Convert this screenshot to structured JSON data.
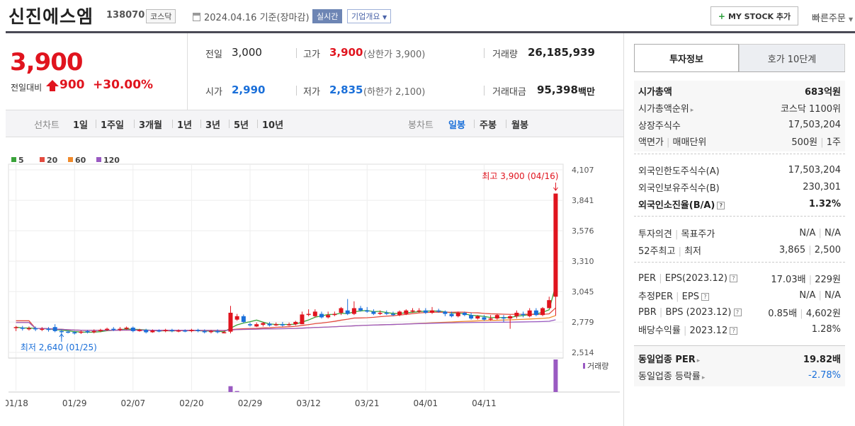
{
  "header": {
    "name": "신진에스엠",
    "code": "138070",
    "market": "코스닥",
    "date": "2024.04.16",
    "date_suffix": "기준(장마감)",
    "realtime": "실시간",
    "overview": "기업개요",
    "mystock": "MY STOCK 추가",
    "quick_order": "빠른주문"
  },
  "price": {
    "current": "3,900",
    "change_label": "전일대비",
    "change": "900",
    "change_pct": "+30.00%"
  },
  "quote": {
    "prev_label": "전일",
    "prev": "3,000",
    "high_label": "고가",
    "high": "3,900",
    "upper_limit": "(상한가 3,900)",
    "volume_label": "거래량",
    "volume": "26,185,939",
    "open_label": "시가",
    "open": "2,990",
    "low_label": "저가",
    "low": "2,835",
    "lower_limit": "(하한가 2,100)",
    "amount_label": "거래대금",
    "amount": "95,398",
    "amount_unit": "백만"
  },
  "period": {
    "line_label": "선차트",
    "line_items": [
      "1일",
      "1주일",
      "3개월",
      "1년",
      "3년",
      "5년",
      "10년"
    ],
    "candle_label": "봉차트",
    "candle_items": [
      "일봉",
      "주봉",
      "월봉"
    ],
    "candle_active": "일봉"
  },
  "chart_data": {
    "type": "candlestick",
    "ma_legend": [
      {
        "name": "5",
        "color": "#3aa33a"
      },
      {
        "name": "20",
        "color": "#e34b3f"
      },
      {
        "name": "60",
        "color": "#f08a2a"
      },
      {
        "name": "120",
        "color": "#9a5ac2"
      }
    ],
    "y_ticks": [
      "4,107",
      "3,841",
      "3,576",
      "3,310",
      "3,045",
      "2,779",
      "2,514"
    ],
    "ylim": [
      2514,
      4107
    ],
    "x_labels": [
      "01/18",
      "01/29",
      "02/07",
      "02/20",
      "02/29",
      "03/12",
      "03/21",
      "04/01",
      "04/11"
    ],
    "high_annotation": "최고 3,900 (04/16)",
    "low_annotation": "최저 2,640 (01/25)",
    "volume_label": "거래량",
    "candles": [
      [
        2735,
        2735,
        2700,
        2745
      ],
      [
        2730,
        2720,
        2705,
        2745
      ],
      [
        2720,
        2725,
        2705,
        2740
      ],
      [
        2725,
        2715,
        2700,
        2740
      ],
      [
        2715,
        2720,
        2700,
        2735
      ],
      [
        2720,
        2710,
        2695,
        2735
      ],
      [
        2735,
        2700,
        2690,
        2760
      ],
      [
        2700,
        2695,
        2640,
        2715
      ],
      [
        2695,
        2690,
        2680,
        2705
      ],
      [
        2690,
        2680,
        2670,
        2700
      ],
      [
        2685,
        2695,
        2675,
        2705
      ],
      [
        2700,
        2690,
        2680,
        2710
      ],
      [
        2690,
        2700,
        2680,
        2715
      ],
      [
        2700,
        2710,
        2690,
        2720
      ],
      [
        2710,
        2720,
        2700,
        2730
      ],
      [
        2720,
        2710,
        2700,
        2735
      ],
      [
        2710,
        2720,
        2700,
        2735
      ],
      [
        2720,
        2730,
        2710,
        2740
      ],
      [
        2730,
        2700,
        2690,
        2740
      ],
      [
        2700,
        2710,
        2695,
        2720
      ],
      [
        2710,
        2690,
        2680,
        2720
      ],
      [
        2690,
        2705,
        2685,
        2715
      ],
      [
        2705,
        2700,
        2690,
        2715
      ],
      [
        2700,
        2710,
        2690,
        2720
      ],
      [
        2710,
        2700,
        2690,
        2720
      ],
      [
        2700,
        2705,
        2690,
        2715
      ],
      [
        2705,
        2700,
        2690,
        2715
      ],
      [
        2700,
        2710,
        2690,
        2720
      ],
      [
        2710,
        2700,
        2690,
        2720
      ],
      [
        2700,
        2690,
        2680,
        2715
      ],
      [
        2695,
        2700,
        2680,
        2710
      ],
      [
        2700,
        2690,
        2680,
        2715
      ],
      [
        2690,
        2690,
        2680,
        2705
      ],
      [
        2695,
        2860,
        2680,
        2920
      ],
      [
        2800,
        2830,
        2790,
        2850
      ],
      [
        2830,
        2780,
        2770,
        2845
      ],
      [
        2760,
        2750,
        2740,
        2775
      ],
      [
        2740,
        2760,
        2735,
        2775
      ],
      [
        2755,
        2770,
        2740,
        2780
      ],
      [
        2765,
        2750,
        2740,
        2780
      ],
      [
        2750,
        2760,
        2745,
        2775
      ],
      [
        2760,
        2750,
        2740,
        2780
      ],
      [
        2755,
        2760,
        2745,
        2775
      ],
      [
        2760,
        2780,
        2750,
        2790
      ],
      [
        2760,
        2845,
        2760,
        2870
      ],
      [
        2845,
        2850,
        2830,
        2890
      ],
      [
        2830,
        2870,
        2820,
        2890
      ],
      [
        2850,
        2820,
        2810,
        2870
      ],
      [
        2820,
        2840,
        2810,
        2870
      ],
      [
        2840,
        2850,
        2830,
        2870
      ],
      [
        2860,
        2900,
        2840,
        2910
      ],
      [
        2880,
        2850,
        2840,
        2980
      ],
      [
        2850,
        2900,
        2840,
        2960
      ],
      [
        2900,
        2880,
        2870,
        2920
      ],
      [
        2880,
        2870,
        2860,
        2910
      ],
      [
        2870,
        2850,
        2840,
        2890
      ],
      [
        2850,
        2860,
        2840,
        2880
      ],
      [
        2860,
        2850,
        2840,
        2880
      ],
      [
        2850,
        2840,
        2830,
        2870
      ],
      [
        2840,
        2870,
        2830,
        2880
      ],
      [
        2850,
        2880,
        2840,
        2890
      ],
      [
        2870,
        2880,
        2860,
        2900
      ],
      [
        2880,
        2880,
        2860,
        2900
      ],
      [
        2880,
        2860,
        2850,
        2900
      ],
      [
        2860,
        2880,
        2850,
        2910
      ],
      [
        2880,
        2870,
        2860,
        2895
      ],
      [
        2870,
        2850,
        2830,
        2880
      ],
      [
        2850,
        2830,
        2820,
        2870
      ],
      [
        2830,
        2860,
        2820,
        2870
      ],
      [
        2860,
        2840,
        2830,
        2870
      ],
      [
        2840,
        2810,
        2800,
        2860
      ],
      [
        2810,
        2830,
        2800,
        2840
      ],
      [
        2820,
        2800,
        2790,
        2840
      ],
      [
        2800,
        2810,
        2790,
        2840
      ],
      [
        2810,
        2840,
        2800,
        2850
      ],
      [
        2820,
        2810,
        2780,
        2840
      ],
      [
        2810,
        2830,
        2720,
        2840
      ],
      [
        2830,
        2860,
        2810,
        2880
      ],
      [
        2850,
        2840,
        2820,
        2870
      ],
      [
        2830,
        2880,
        2820,
        2900
      ],
      [
        2880,
        2840,
        2830,
        2900
      ],
      [
        2840,
        2900,
        2830,
        2910
      ],
      [
        2900,
        2970,
        2900,
        3000
      ],
      [
        3000,
        3900,
        2835,
        3900
      ]
    ],
    "volumes": [
      0,
      0,
      0,
      0,
      0,
      0,
      0,
      0,
      0,
      0,
      0,
      0,
      0,
      0,
      0,
      0,
      0,
      0,
      0,
      0,
      0,
      0,
      0,
      0,
      0,
      0,
      0,
      0,
      0,
      0,
      0,
      0,
      0,
      18,
      3,
      0,
      0,
      0,
      0,
      0,
      0,
      0,
      0,
      0,
      0,
      0,
      0,
      0,
      0,
      0,
      0,
      0,
      0,
      0,
      0,
      0,
      0,
      0,
      0,
      0,
      0,
      0,
      0,
      0,
      0,
      0,
      0,
      0,
      0,
      0,
      0,
      0,
      0,
      0,
      0,
      0,
      0,
      0,
      0,
      0,
      0,
      0,
      0,
      100
    ]
  },
  "invest": {
    "tab_active": "투자정보",
    "tab_other": "호가 10단계",
    "market_cap_label": "시가총액",
    "market_cap": "683억원",
    "rank_label": "시가총액순위",
    "rank": "코스닥 1100위",
    "shares_label": "상장주식수",
    "shares": "17,503,204",
    "par_label": "액면가",
    "unit_label": "매매단위",
    "par": "500원",
    "unit": "1주",
    "foreign_limit_label": "외국인한도주식수(A)",
    "foreign_limit": "17,503,204",
    "foreign_hold_label": "외국인보유주식수(B)",
    "foreign_hold": "230,301",
    "foreign_ratio_label": "외국인소진율(B/A)",
    "foreign_ratio": "1.32%",
    "opinion_label": "투자의견",
    "target_label": "목표주가",
    "opinion": "N/A",
    "target": "N/A",
    "w52_high_label": "52주최고",
    "w52_low_label": "최저",
    "w52_high": "3,865",
    "w52_low": "2,500",
    "per_label": "PER",
    "eps_label": "EPS(2023.12)",
    "per": "17.03배",
    "eps": "229원",
    "est_per_label": "추정PER",
    "est_eps_label": "EPS",
    "est_per": "N/A",
    "est_eps": "N/A",
    "pbr_label": "PBR",
    "bps_label": "BPS (2023.12)",
    "pbr": "0.85배",
    "bps": "4,602원",
    "div_label": "배당수익률",
    "div_year": "2023.12",
    "div": "1.28%",
    "sector_per_label": "동일업종 PER",
    "sector_per": "19.82배",
    "sector_chg_label": "동일업종 등락률",
    "sector_chg": "-2.78%"
  }
}
